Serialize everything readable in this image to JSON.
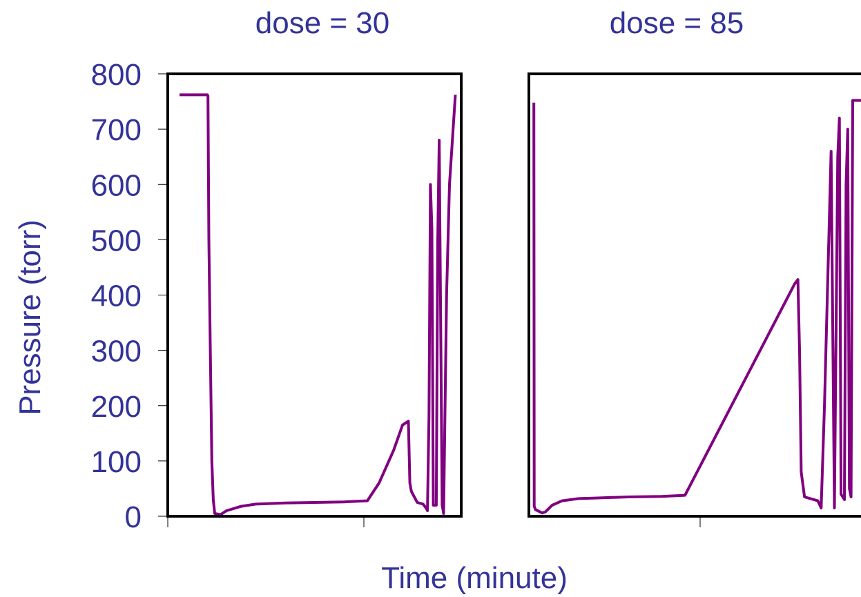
{
  "colors": {
    "text": "#333399",
    "series": "#800080",
    "frame": "#000000",
    "background": "#ffffff"
  },
  "chart_data": {
    "type": "line",
    "ylabel": "Pressure (torr)",
    "xlabel": "Time (minute)",
    "ylim": [
      0,
      800
    ],
    "yticks": [
      "0",
      "100",
      "200",
      "300",
      "400",
      "500",
      "600",
      "700",
      "800"
    ],
    "grid": false,
    "legend": "none",
    "panels": [
      {
        "title": "dose = 30",
        "xlim": [
          0,
          1
        ],
        "series": [
          {
            "x": [
              0.04,
              0.135,
              0.137,
              0.14,
              0.145,
              0.15,
              0.155,
              0.16,
              0.18,
              0.2,
              0.25,
              0.3,
              0.4,
              0.5,
              0.6,
              0.64,
              0.68,
              0.72,
              0.77,
              0.8,
              0.82,
              0.825,
              0.83,
              0.85,
              0.87,
              0.88,
              0.885,
              0.89,
              0.895,
              0.9,
              0.905,
              0.915,
              0.92,
              0.925,
              0.935,
              0.94,
              0.945,
              0.95,
              0.96,
              0.98
            ],
            "y": [
              762,
              762,
              760,
              500,
              300,
              100,
              30,
              5,
              3,
              10,
              18,
              22,
              24,
              25,
              26,
              27,
              28,
              60,
              120,
              165,
              172,
              60,
              45,
              25,
              22,
              15,
              10,
              180,
              600,
              520,
              20,
              20,
              500,
              680,
              20,
              5,
              200,
              400,
              600,
              762
            ]
          }
        ]
      },
      {
        "title": "dose = 85",
        "xlim": [
          0,
          1
        ],
        "series": [
          {
            "x": [
              0.015,
              0.016,
              0.02,
              0.04,
              0.05,
              0.07,
              0.1,
              0.15,
              0.2,
              0.3,
              0.4,
              0.47,
              0.8,
              0.81,
              0.815,
              0.82,
              0.83,
              0.87,
              0.88,
              0.89,
              0.91,
              0.92,
              0.93,
              0.935,
              0.94,
              0.95,
              0.955,
              0.96,
              0.965,
              0.97,
              0.975,
              0.98,
              0.985,
              1.0
            ],
            "y": [
              748,
              18,
              12,
              6,
              8,
              20,
              28,
              32,
              33,
              35,
              36,
              38,
              420,
              428,
              300,
              80,
              35,
              28,
              15,
              200,
              660,
              15,
              650,
              720,
              40,
              30,
              600,
              700,
              50,
              35,
              752,
              752,
              752,
              752
            ]
          }
        ]
      }
    ]
  }
}
